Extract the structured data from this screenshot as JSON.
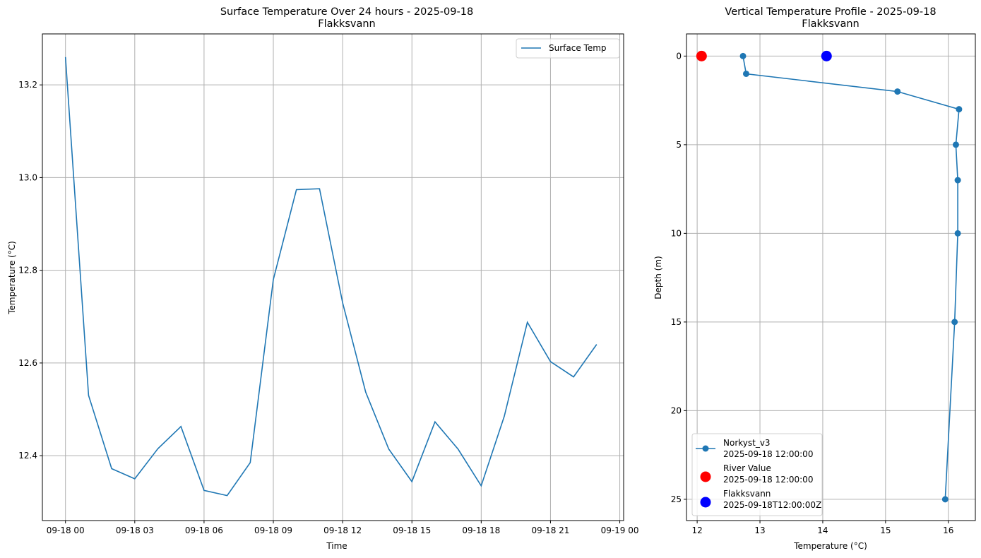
{
  "chart_data": [
    {
      "type": "line",
      "title_line1": "Surface Temperature Over 24 hours - 2025-09-18",
      "title_line2": "Flakksvann",
      "xlabel": "Time",
      "ylabel": "Temperature (°C)",
      "x_axis": "time",
      "xlim": [
        "2025-09-17 23:00",
        "2025-09-19 00:10"
      ],
      "ylim": [
        12.26,
        13.31
      ],
      "xticks": [
        {
          "t": "2025-09-18 00:00",
          "label": "09-18 00"
        },
        {
          "t": "2025-09-18 03:00",
          "label": "09-18 03"
        },
        {
          "t": "2025-09-18 06:00",
          "label": "09-18 06"
        },
        {
          "t": "2025-09-18 09:00",
          "label": "09-18 09"
        },
        {
          "t": "2025-09-18 12:00",
          "label": "09-18 12"
        },
        {
          "t": "2025-09-18 15:00",
          "label": "09-18 15"
        },
        {
          "t": "2025-09-18 18:00",
          "label": "09-18 18"
        },
        {
          "t": "2025-09-18 21:00",
          "label": "09-18 21"
        },
        {
          "t": "2025-09-19 00:00",
          "label": "09-19 00"
        }
      ],
      "yticks": [
        {
          "v": 12.4,
          "label": "12.4"
        },
        {
          "v": 12.6,
          "label": "12.6"
        },
        {
          "v": 12.8,
          "label": "12.8"
        },
        {
          "v": 13.0,
          "label": "13.0"
        },
        {
          "v": 13.2,
          "label": "13.2"
        }
      ],
      "grid": true,
      "legend_position": "top-right",
      "series": [
        {
          "name": "Surface Temp",
          "color": "#1f77b4",
          "x": [
            "2025-09-18 00:00",
            "2025-09-18 01:00",
            "2025-09-18 02:00",
            "2025-09-18 03:00",
            "2025-09-18 04:00",
            "2025-09-18 05:00",
            "2025-09-18 06:00",
            "2025-09-18 07:00",
            "2025-09-18 08:00",
            "2025-09-18 09:00",
            "2025-09-18 10:00",
            "2025-09-18 11:00",
            "2025-09-18 12:00",
            "2025-09-18 13:00",
            "2025-09-18 14:00",
            "2025-09-18 15:00",
            "2025-09-18 16:00",
            "2025-09-18 17:00",
            "2025-09-18 18:00",
            "2025-09-18 19:00",
            "2025-09-18 20:00",
            "2025-09-18 21:00",
            "2025-09-18 22:00",
            "2025-09-18 23:00"
          ],
          "y": [
            13.26,
            12.53,
            12.372,
            12.35,
            12.415,
            12.463,
            12.325,
            12.314,
            12.385,
            12.78,
            12.974,
            12.976,
            12.73,
            12.537,
            12.414,
            12.344,
            12.473,
            12.414,
            12.335,
            12.485,
            12.688,
            12.603,
            12.57,
            12.64
          ]
        }
      ]
    },
    {
      "type": "line",
      "title_line1": "Vertical Temperature Profile - 2025-09-18",
      "title_line2": "Flakksvann",
      "xlabel": "Temperature (°C)",
      "ylabel": "Depth (m)",
      "xlim": [
        11.83,
        16.43
      ],
      "ylim": [
        26.2,
        -1.25
      ],
      "y_inverted": true,
      "xticks": [
        {
          "v": 12,
          "label": "12"
        },
        {
          "v": 13,
          "label": "13"
        },
        {
          "v": 14,
          "label": "14"
        },
        {
          "v": 15,
          "label": "15"
        },
        {
          "v": 16,
          "label": "16"
        }
      ],
      "yticks": [
        {
          "v": 0,
          "label": "0"
        },
        {
          "v": 5,
          "label": "5"
        },
        {
          "v": 10,
          "label": "10"
        },
        {
          "v": 15,
          "label": "15"
        },
        {
          "v": 20,
          "label": "20"
        },
        {
          "v": 25,
          "label": "25"
        }
      ],
      "grid": true,
      "legend_position": "bottom-left",
      "series": [
        {
          "name_line1": "Norkyst_v3",
          "name_line2": "2025-09-18 12:00:00",
          "color": "#1f77b4",
          "marker": "circle",
          "x": [
            12.73,
            12.78,
            15.19,
            16.17,
            16.12,
            16.15,
            16.15,
            16.1,
            15.95
          ],
          "y": [
            0,
            1,
            2,
            3,
            5,
            7,
            10,
            15,
            25
          ]
        },
        {
          "name_line1": "River Value",
          "name_line2": "2025-09-18 12:00:00",
          "color": "#ff0000",
          "marker": "circle",
          "x": [
            12.07
          ],
          "y": [
            0
          ]
        },
        {
          "name_line1": "Flakksvann",
          "name_line2": "2025-09-18T12:00:00Z",
          "color": "#0000ff",
          "marker": "circle",
          "x": [
            14.06
          ],
          "y": [
            0
          ]
        }
      ]
    }
  ]
}
